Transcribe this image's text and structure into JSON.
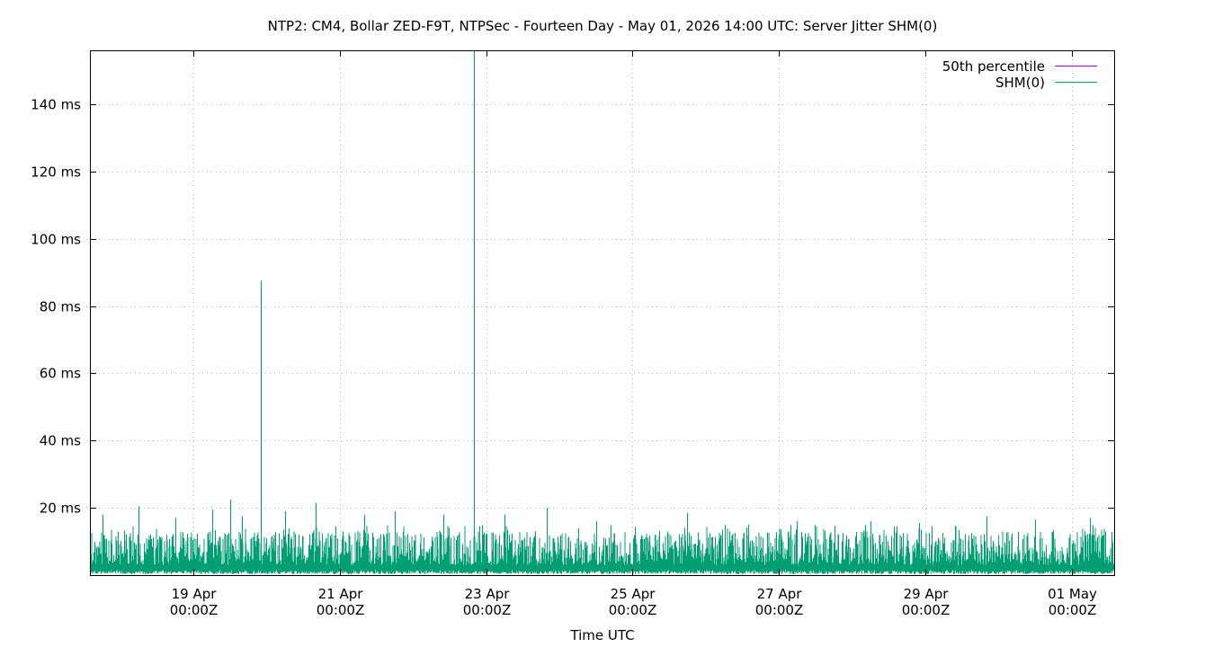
{
  "chart_data": {
    "type": "line",
    "title": "NTP2: CM4, Bollar ZED-F9T, NTPSec - Fourteen Day - May 01, 2026 14:00 UTC: Server Jitter SHM(0)",
    "xlabel": "Time UTC",
    "ylabel": "",
    "x_range": [
      "2026-04-17T14:00Z",
      "2026-05-01T14:00Z"
    ],
    "ylim": [
      0,
      156
    ],
    "grid": true,
    "legend_position": "top-right",
    "y_ticks": [
      {
        "value": 20,
        "label": "20 ms"
      },
      {
        "value": 40,
        "label": "40 ms"
      },
      {
        "value": 60,
        "label": "60 ms"
      },
      {
        "value": 80,
        "label": "80 ms"
      },
      {
        "value": 100,
        "label": "100 ms"
      },
      {
        "value": 120,
        "label": "120 ms"
      },
      {
        "value": 140,
        "label": "140 ms"
      }
    ],
    "x_ticks": [
      {
        "value": "2026-04-19T00:00Z",
        "label1": "19 Apr",
        "label2": "00:00Z"
      },
      {
        "value": "2026-04-21T00:00Z",
        "label1": "21 Apr",
        "label2": "00:00Z"
      },
      {
        "value": "2026-04-23T00:00Z",
        "label1": "23 Apr",
        "label2": "00:00Z"
      },
      {
        "value": "2026-04-25T00:00Z",
        "label1": "25 Apr",
        "label2": "00:00Z"
      },
      {
        "value": "2026-04-27T00:00Z",
        "label1": "27 Apr",
        "label2": "00:00Z"
      },
      {
        "value": "2026-04-29T00:00Z",
        "label1": "29 Apr",
        "label2": "00:00Z"
      },
      {
        "value": "2026-05-01T00:00Z",
        "label1": "01 May",
        "label2": "00:00Z"
      }
    ],
    "series": [
      {
        "name": "50th percentile",
        "color": "#9400d3",
        "points": []
      },
      {
        "name": "SHM(0)",
        "color": "#009e73",
        "style": "dense noisy trace, baseline about 1-13 ms",
        "points": [
          {
            "x": "2026-04-17T18:00Z",
            "y": 18
          },
          {
            "x": "2026-04-18T06:00Z",
            "y": 20.5
          },
          {
            "x": "2026-04-18T18:00Z",
            "y": 17
          },
          {
            "x": "2026-04-19T06:00Z",
            "y": 19.5
          },
          {
            "x": "2026-04-19T12:00Z",
            "y": 22.5
          },
          {
            "x": "2026-04-19T16:00Z",
            "y": 17.5
          },
          {
            "x": "2026-04-19T22:00Z",
            "y": 87.5
          },
          {
            "x": "2026-04-20T06:00Z",
            "y": 19
          },
          {
            "x": "2026-04-20T16:00Z",
            "y": 21.5
          },
          {
            "x": "2026-04-21T08:00Z",
            "y": 18
          },
          {
            "x": "2026-04-21T18:00Z",
            "y": 19
          },
          {
            "x": "2026-04-22T10:00Z",
            "y": 18
          },
          {
            "x": "2026-04-22T20:00Z",
            "y": 156
          },
          {
            "x": "2026-04-23T06:00Z",
            "y": 18
          },
          {
            "x": "2026-04-23T20:00Z",
            "y": 20
          },
          {
            "x": "2026-04-24T12:00Z",
            "y": 16
          },
          {
            "x": "2026-04-25T18:00Z",
            "y": 18.5
          },
          {
            "x": "2026-04-26T14:00Z",
            "y": 15
          },
          {
            "x": "2026-04-27T06:00Z",
            "y": 16
          },
          {
            "x": "2026-04-28T06:00Z",
            "y": 16
          },
          {
            "x": "2026-04-28T22:00Z",
            "y": 15.5
          },
          {
            "x": "2026-04-29T20:00Z",
            "y": 17.5
          },
          {
            "x": "2026-04-30T12:00Z",
            "y": 16.5
          },
          {
            "x": "2026-05-01T06:00Z",
            "y": 17
          }
        ]
      }
    ]
  }
}
